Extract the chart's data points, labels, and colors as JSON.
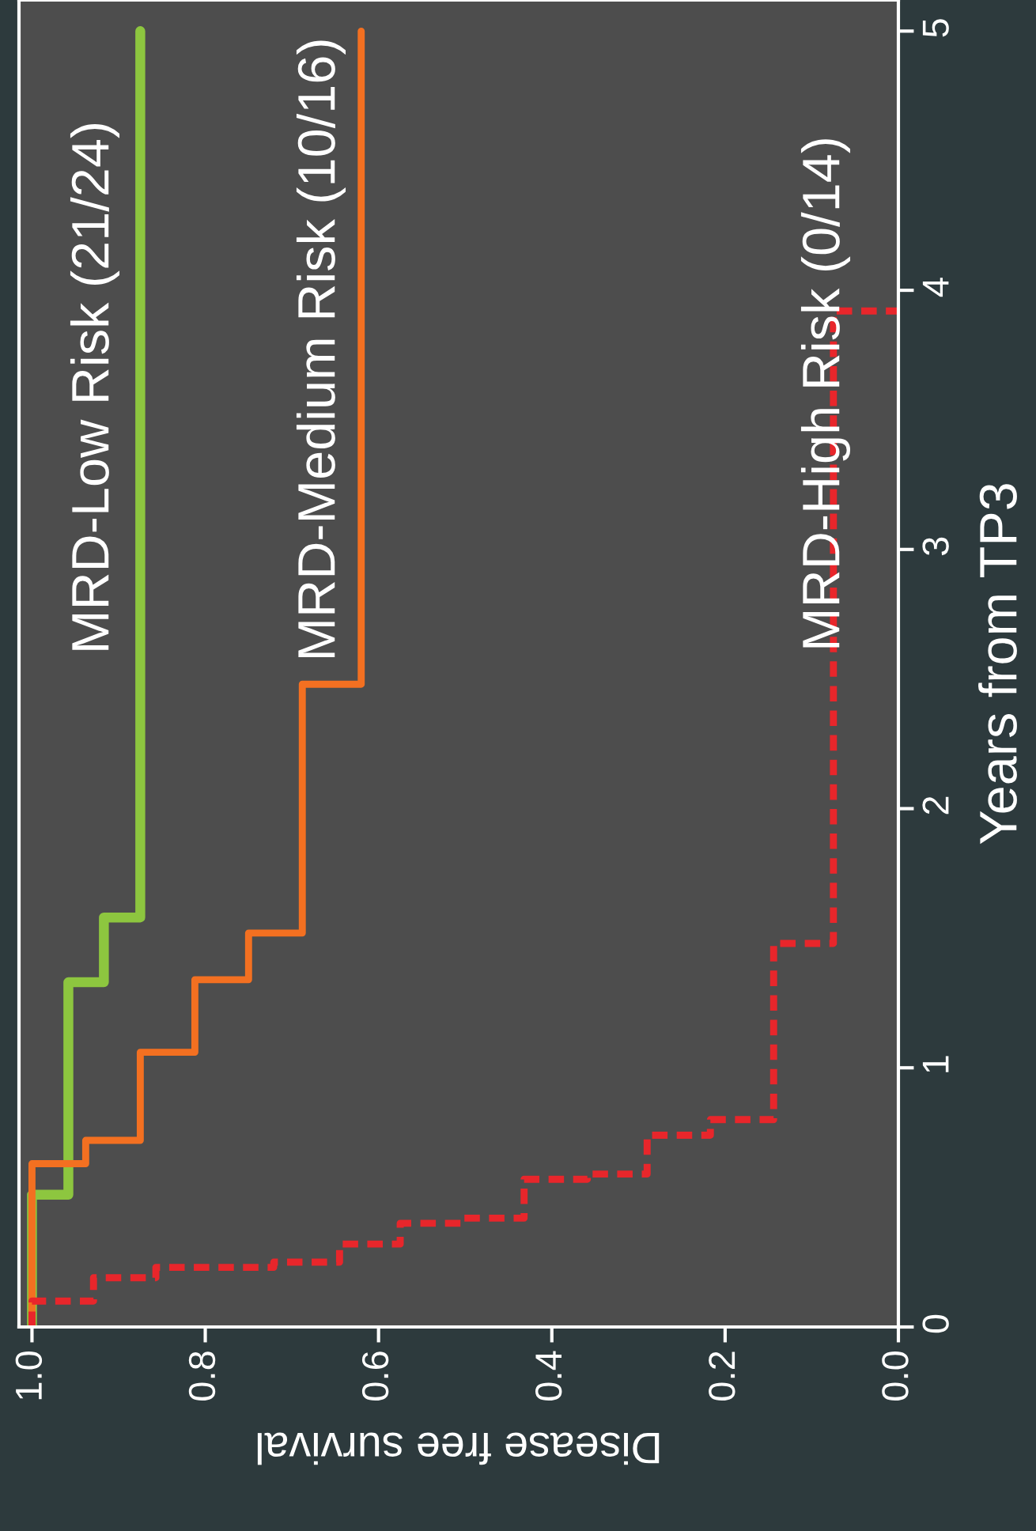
{
  "chart_data": {
    "type": "line",
    "xlabel": "Disease free survival",
    "ylabel": "Years from TP3",
    "xlim": [
      1.015,
      0
    ],
    "xticks": [
      {
        "value": 1,
        "label": "1.0"
      },
      0.8,
      0.6,
      0.4,
      0.2,
      {
        "value": 0,
        "label": "0.0"
      }
    ],
    "ylim": [
      0,
      5.12
    ],
    "yticks": [
      0,
      1,
      2,
      3,
      4,
      5
    ],
    "grid": false,
    "marker": "none",
    "series": [
      {
        "color": "#8dc63f",
        "line_style": "solid",
        "x": [
          1.0,
          1.0,
          0.958,
          0.958,
          0.917,
          0.917,
          0.875,
          0.875
        ],
        "values": [
          0,
          0.51,
          0.51,
          1.33,
          1.33,
          1.58,
          1.58,
          5.0
        ]
      },
      {
        "color": "#f37021",
        "line_style": "solid",
        "x": [
          1.0,
          1.0,
          0.938,
          0.938,
          0.875,
          0.875,
          0.812,
          0.812,
          0.75,
          0.75,
          0.688,
          0.688,
          0.62,
          0.62
        ],
        "values": [
          0,
          0.63,
          0.63,
          0.72,
          0.72,
          1.06,
          1.06,
          1.34,
          1.34,
          1.52,
          1.52,
          2.48,
          2.48,
          5.0
        ]
      },
      {
        "color": "#e8262b",
        "line_style": "dashed",
        "x": [
          1.0,
          1.0,
          0.929,
          0.929,
          0.857,
          0.857,
          0.721,
          0.721,
          0.645,
          0.645,
          0.575,
          0.575,
          0.505,
          0.505,
          0.432,
          0.432,
          0.359,
          0.359,
          0.29,
          0.29,
          0.217,
          0.217,
          0.144,
          0.144,
          0.075,
          0.075,
          0.0
        ],
        "values": [
          0,
          0.1,
          0.1,
          0.19,
          0.19,
          0.23,
          0.23,
          0.25,
          0.25,
          0.32,
          0.32,
          0.4,
          0.4,
          0.42,
          0.42,
          0.57,
          0.57,
          0.59,
          0.59,
          0.74,
          0.74,
          0.8,
          0.8,
          1.48,
          1.48,
          3.92,
          3.92
        ]
      }
    ],
    "annotations": [
      "MRD-Low Risk (21/24)",
      "MRD-Medium Risk (10/16)",
      "MRD-High Risk (0/14)"
    ]
  }
}
